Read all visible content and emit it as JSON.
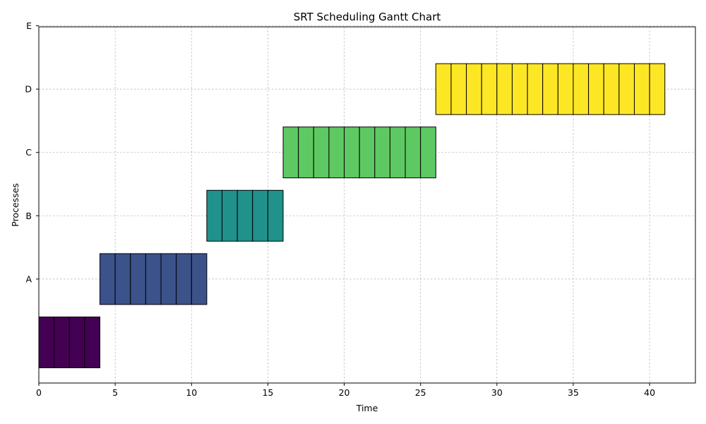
{
  "chart_data": {
    "type": "bar",
    "orientation": "horizontal",
    "title": "SRT Scheduling Gantt Chart",
    "xlabel": "Time",
    "ylabel": "Processes",
    "xlim": [
      0,
      43
    ],
    "x_ticks": [
      0,
      5,
      10,
      15,
      20,
      25,
      30,
      35,
      40
    ],
    "y_ticks": [
      "A",
      "B",
      "C",
      "D",
      "E"
    ],
    "grid": true,
    "legend": "none",
    "unit_width": 1,
    "tasks": [
      {
        "row": 0,
        "start": 0,
        "end": 4,
        "color": "#440154"
      },
      {
        "row": 1,
        "start": 4,
        "end": 11,
        "color": "#3b528b"
      },
      {
        "row": 2,
        "start": 11,
        "end": 16,
        "color": "#21918c"
      },
      {
        "row": 3,
        "start": 16,
        "end": 26,
        "color": "#5ec962"
      },
      {
        "row": 4,
        "start": 26,
        "end": 41,
        "color": "#fde725"
      }
    ]
  }
}
